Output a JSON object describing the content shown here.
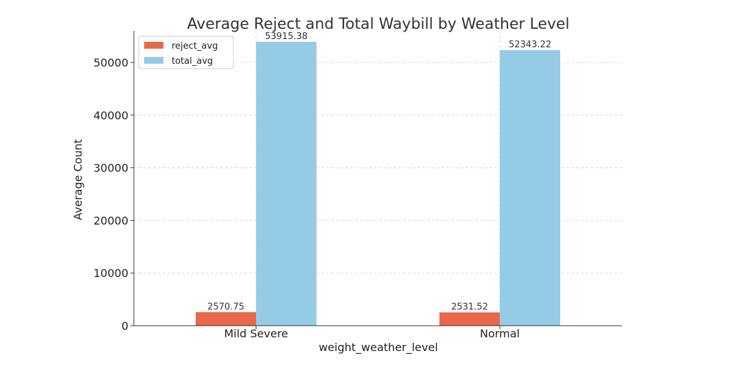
{
  "chart_data": {
    "type": "bar",
    "title": "Average Reject and Total Waybill by Weather Level",
    "xlabel": "weight_weather_level",
    "ylabel": "Average Count",
    "categories": [
      "Mild Severe",
      "Normal"
    ],
    "series": [
      {
        "name": "reject_avg",
        "values": [
          2570.75,
          2531.52
        ],
        "labels": [
          "2570.75",
          "2531.52"
        ],
        "color": "#e8694a"
      },
      {
        "name": "total_avg",
        "values": [
          53915.38,
          52343.22
        ],
        "labels": [
          "53915.38",
          "52343.22"
        ],
        "color": "#96cbe6"
      }
    ],
    "ylim": [
      0,
      56000
    ],
    "yticks": [
      0,
      10000,
      20000,
      30000,
      40000,
      50000
    ],
    "ytick_labels": [
      "0",
      "10000",
      "20000",
      "30000",
      "40000",
      "50000"
    ],
    "grid": true,
    "legend_placement": "top-left"
  }
}
